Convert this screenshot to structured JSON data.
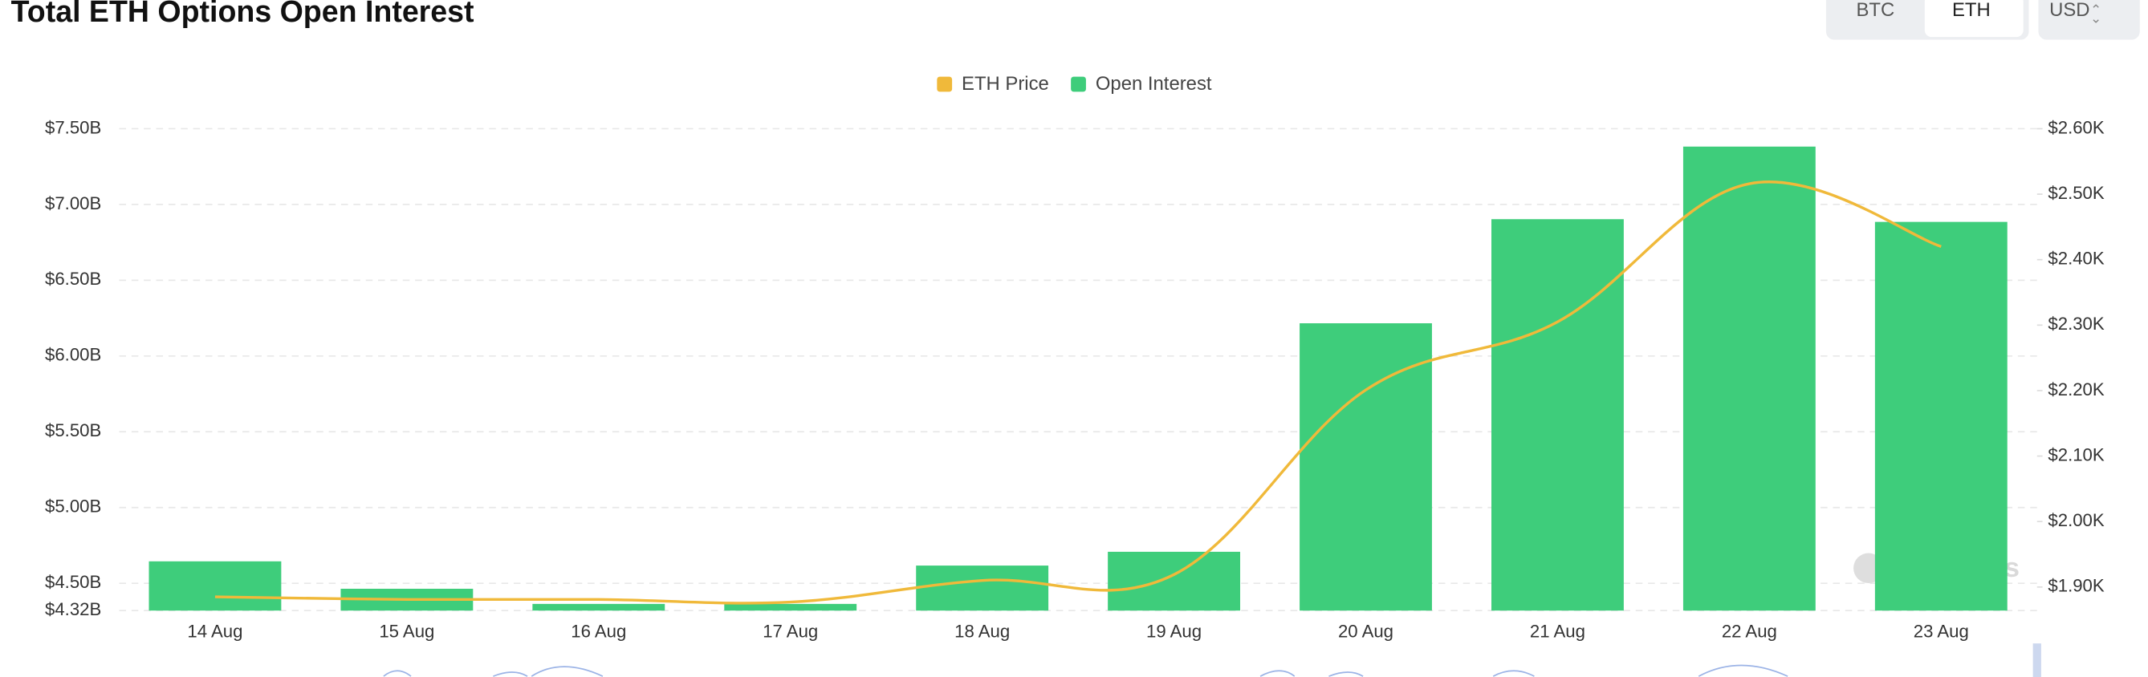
{
  "chart_data": {
    "type": "bar",
    "title": "Total ETH Options Open Interest",
    "categories": [
      "14 Aug",
      "15 Aug",
      "16 Aug",
      "17 Aug",
      "18 Aug",
      "19 Aug",
      "20 Aug",
      "21 Aug",
      "22 Aug",
      "23 Aug"
    ],
    "series": [
      {
        "name": "ETH Price",
        "type": "line",
        "axis": "y2",
        "color": "#f0b93a",
        "values": [
          1885,
          1881,
          1881,
          1877,
          1910,
          1919,
          2201,
          2305,
          2516,
          2420
        ]
      },
      {
        "name": "Open Interest",
        "type": "bar",
        "color": "#3ecd7b",
        "values": [
          4.645,
          4.464,
          4.364,
          4.364,
          4.617,
          4.708,
          6.216,
          6.903,
          7.382,
          6.885
        ]
      }
    ],
    "ylim": [
      4.32,
      7.5
    ],
    "yticks": [
      {
        "value": 4.32,
        "label": "$4.32B"
      },
      {
        "value": 4.5,
        "label": "$4.50B"
      },
      {
        "value": 5.0,
        "label": "$5.00B"
      },
      {
        "value": 5.5,
        "label": "$5.50B"
      },
      {
        "value": 6.0,
        "label": "$6.00B"
      },
      {
        "value": 6.5,
        "label": "$6.50B"
      },
      {
        "value": 7.0,
        "label": "$7.00B"
      },
      {
        "value": 7.5,
        "label": "$7.50B"
      }
    ],
    "y2lim": [
      1864,
      2600
    ],
    "y2ticks": [
      {
        "value": 1900,
        "label": "$1.90K"
      },
      {
        "value": 2000,
        "label": "$2.00K"
      },
      {
        "value": 2100,
        "label": "$2.10K"
      },
      {
        "value": 2200,
        "label": "$2.20K"
      },
      {
        "value": 2300,
        "label": "$2.30K"
      },
      {
        "value": 2400,
        "label": "$2.40K"
      },
      {
        "value": 2500,
        "label": "$2.50K"
      },
      {
        "value": 2600,
        "label": "$2.60K"
      }
    ],
    "grid": true,
    "legend": "top"
  },
  "controls": {
    "coins": [
      "BTC",
      "ETH"
    ],
    "selected": 1,
    "currency": "USD"
  },
  "watermark": "coinglass"
}
